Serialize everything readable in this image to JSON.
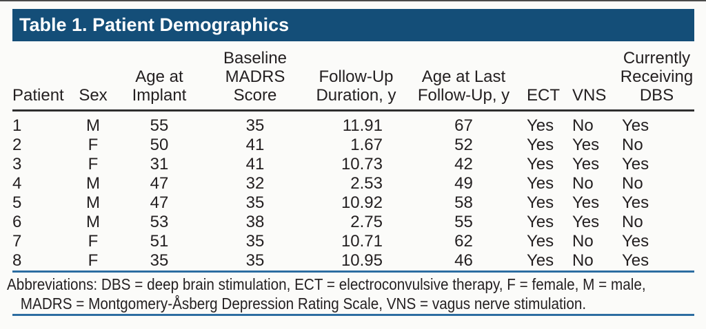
{
  "title": "Table 1. Patient Demographics",
  "colors": {
    "title_bar_blue": "#144e78",
    "rule_blue": "#2c6da1",
    "header_rule_dark": "#2e2e2e",
    "text": "#231f20",
    "background": "#fbfbf9"
  },
  "table": {
    "columns": [
      {
        "label": "Patient",
        "header_align": "left",
        "data_align": "left"
      },
      {
        "label": "Sex",
        "header_align": "center",
        "data_align": "center"
      },
      {
        "label": "Age at\nImplant",
        "header_align": "center",
        "data_align": "center"
      },
      {
        "label": "Baseline\nMADRS Score",
        "header_align": "center",
        "data_align": "center"
      },
      {
        "label": "Follow-Up\nDuration, y",
        "header_align": "center",
        "data_align": "right"
      },
      {
        "label": "Age at Last\nFollow-Up, y",
        "header_align": "center",
        "data_align": "center"
      },
      {
        "label": "ECT",
        "header_align": "left",
        "data_align": "left"
      },
      {
        "label": "VNS",
        "header_align": "left",
        "data_align": "left"
      },
      {
        "label": "Currently\nReceiving\nDBS",
        "header_align": "center",
        "data_align": "left"
      }
    ],
    "rows": [
      [
        "1",
        "M",
        "55",
        "35",
        "11.91",
        "67",
        "Yes",
        "No",
        "Yes"
      ],
      [
        "2",
        "F",
        "50",
        "41",
        "1.67",
        "52",
        "Yes",
        "Yes",
        "No"
      ],
      [
        "3",
        "F",
        "31",
        "41",
        "10.73",
        "42",
        "Yes",
        "Yes",
        "Yes"
      ],
      [
        "4",
        "M",
        "47",
        "32",
        "2.53",
        "49",
        "Yes",
        "No",
        "No"
      ],
      [
        "5",
        "M",
        "47",
        "35",
        "10.92",
        "58",
        "Yes",
        "Yes",
        "Yes"
      ],
      [
        "6",
        "M",
        "53",
        "38",
        "2.75",
        "55",
        "Yes",
        "Yes",
        "No"
      ],
      [
        "7",
        "F",
        "51",
        "35",
        "10.71",
        "62",
        "Yes",
        "No",
        "Yes"
      ],
      [
        "8",
        "F",
        "35",
        "35",
        "10.95",
        "46",
        "Yes",
        "No",
        "Yes"
      ]
    ]
  },
  "footnote": "Abbreviations: DBS = deep brain stimulation, ECT = electroconvulsive therapy, F = female, M = male,\nMADRS = Montgomery-Åsberg Depression Rating Scale, VNS = vagus nerve stimulation."
}
